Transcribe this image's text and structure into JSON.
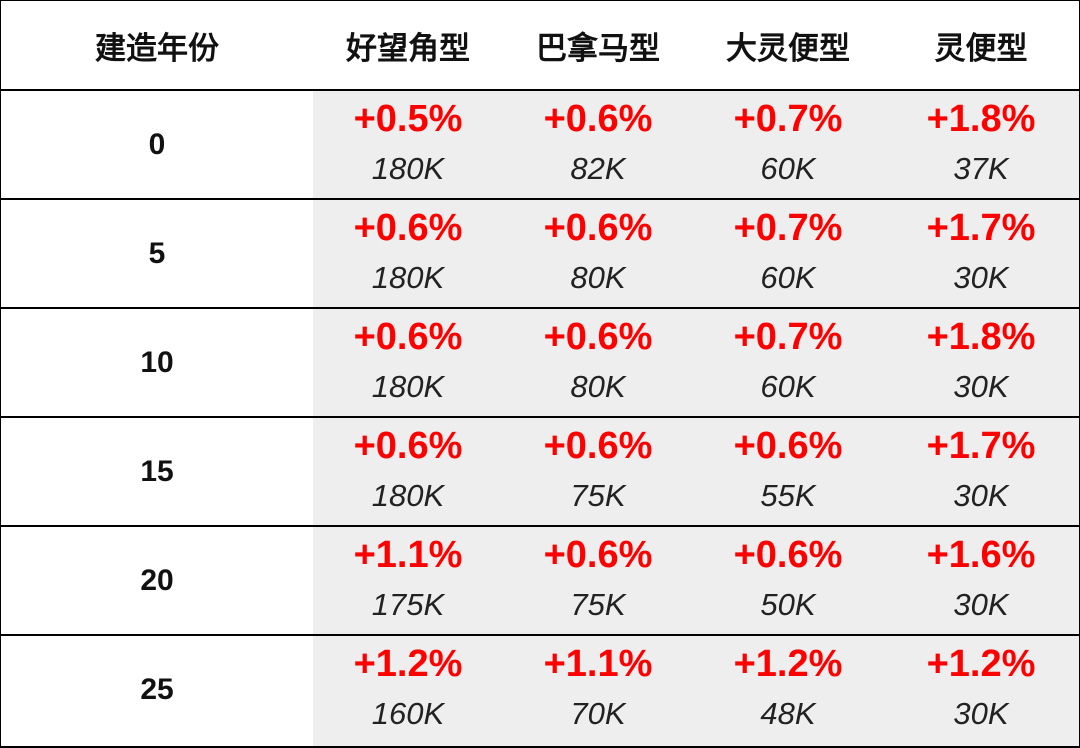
{
  "chart_data": {
    "type": "table",
    "columns": [
      "建造年份",
      "好望角型",
      "巴拿马型",
      "大灵便型",
      "灵便型"
    ],
    "rows": [
      {
        "year": "0",
        "cells": [
          {
            "pct": "+0.5%",
            "vol": "180K"
          },
          {
            "pct": "+0.6%",
            "vol": "82K"
          },
          {
            "pct": "+0.7%",
            "vol": "60K"
          },
          {
            "pct": "+1.8%",
            "vol": "37K"
          }
        ]
      },
      {
        "year": "5",
        "cells": [
          {
            "pct": "+0.6%",
            "vol": "180K"
          },
          {
            "pct": "+0.6%",
            "vol": "80K"
          },
          {
            "pct": "+0.7%",
            "vol": "60K"
          },
          {
            "pct": "+1.7%",
            "vol": "30K"
          }
        ]
      },
      {
        "year": "10",
        "cells": [
          {
            "pct": "+0.6%",
            "vol": "180K"
          },
          {
            "pct": "+0.6%",
            "vol": "80K"
          },
          {
            "pct": "+0.7%",
            "vol": "60K"
          },
          {
            "pct": "+1.8%",
            "vol": "30K"
          }
        ]
      },
      {
        "year": "15",
        "cells": [
          {
            "pct": "+0.6%",
            "vol": "180K"
          },
          {
            "pct": "+0.6%",
            "vol": "75K"
          },
          {
            "pct": "+0.6%",
            "vol": "55K"
          },
          {
            "pct": "+1.7%",
            "vol": "30K"
          }
        ]
      },
      {
        "year": "20",
        "cells": [
          {
            "pct": "+1.1%",
            "vol": "175K"
          },
          {
            "pct": "+0.6%",
            "vol": "75K"
          },
          {
            "pct": "+0.6%",
            "vol": "50K"
          },
          {
            "pct": "+1.6%",
            "vol": "30K"
          }
        ]
      },
      {
        "year": "25",
        "cells": [
          {
            "pct": "+1.2%",
            "vol": "160K"
          },
          {
            "pct": "+1.1%",
            "vol": "70K"
          },
          {
            "pct": "+1.2%",
            "vol": "48K"
          },
          {
            "pct": "+1.2%",
            "vol": "30K"
          }
        ]
      }
    ],
    "colors": {
      "change": "#ff0000",
      "shade": "#eeeeee",
      "border": "#000000"
    }
  }
}
